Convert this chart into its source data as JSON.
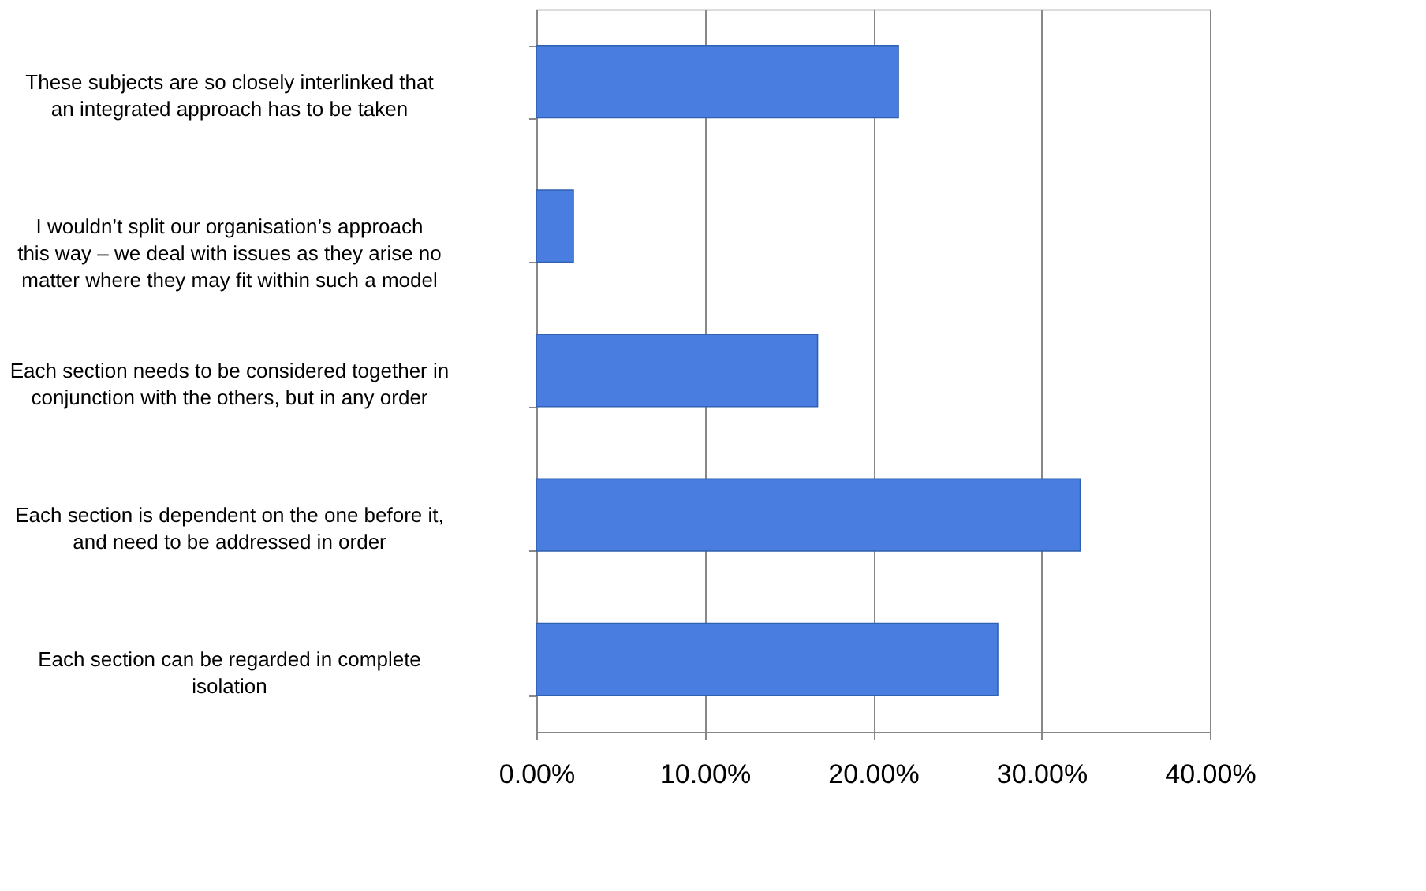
{
  "chart_data": {
    "type": "bar",
    "orientation": "horizontal",
    "categories": [
      "These subjects are so closely interlinked that an integrated approach has to be taken",
      "I wouldn’t split our organisation’s approach this way – we deal with issues as they arise no matter where they may fit within such a model",
      "Each section needs to be considered together in conjunction with the others, but in any order",
      "Each section is dependent on the one before it, and need to be addressed in order",
      "Each section can be regarded in complete isolation"
    ],
    "values": [
      21.5,
      2.2,
      16.7,
      32.3,
      27.4
    ],
    "color": "#4a7de0",
    "xlim": [
      0,
      40
    ],
    "xticks": [
      {
        "value": 0,
        "label": "0.00%"
      },
      {
        "value": 10,
        "label": "10.00%"
      },
      {
        "value": 20,
        "label": "20.00%"
      },
      {
        "value": 30,
        "label": "30.00%"
      },
      {
        "value": 40,
        "label": "40.00%"
      }
    ],
    "grid": "x"
  }
}
